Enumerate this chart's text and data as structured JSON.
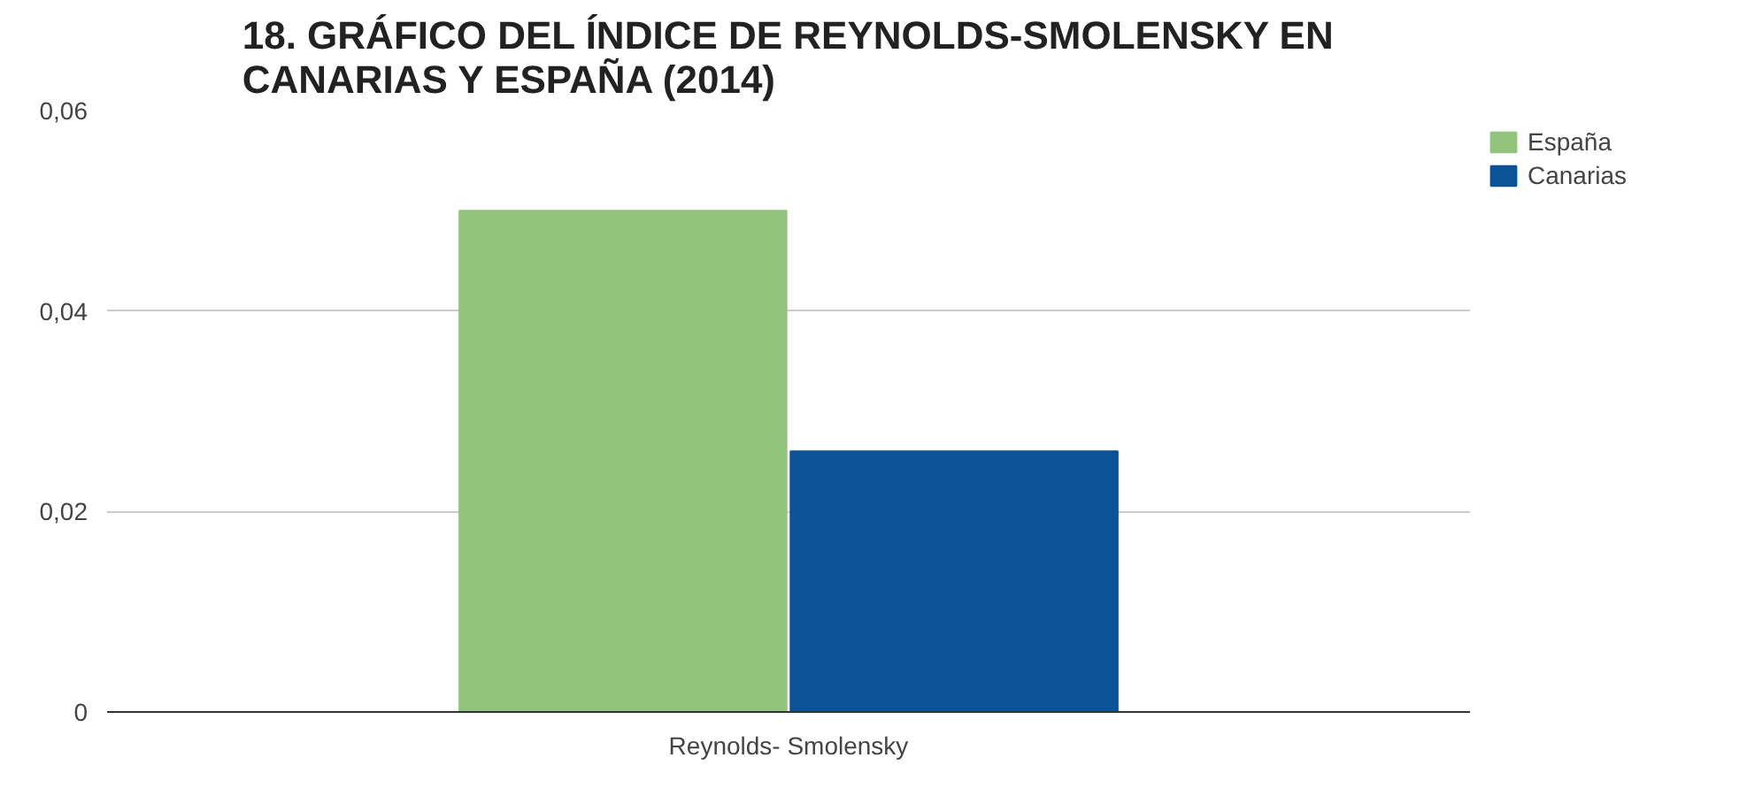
{
  "chart_data": {
    "type": "bar",
    "title": "18. GRÁFICO DEL ÍNDICE DE REYNOLDS-SMOLENSKY EN CANARIAS Y ESPAÑA (2014)",
    "categories": [
      "Reynolds- Smolensky"
    ],
    "series": [
      {
        "name": "España",
        "color": "#93c47d",
        "values": [
          0.05
        ]
      },
      {
        "name": "Canarias",
        "color": "#0b5394",
        "values": [
          0.026
        ]
      }
    ],
    "ylim": [
      0,
      0.06
    ],
    "yticks": [
      0,
      {
        "value": 0.02,
        "label": "0,02"
      },
      {
        "value": 0.04,
        "label": "0,04"
      },
      {
        "value": 0.06,
        "label": "0,06"
      }
    ],
    "grid": "y",
    "legend": "top right"
  }
}
